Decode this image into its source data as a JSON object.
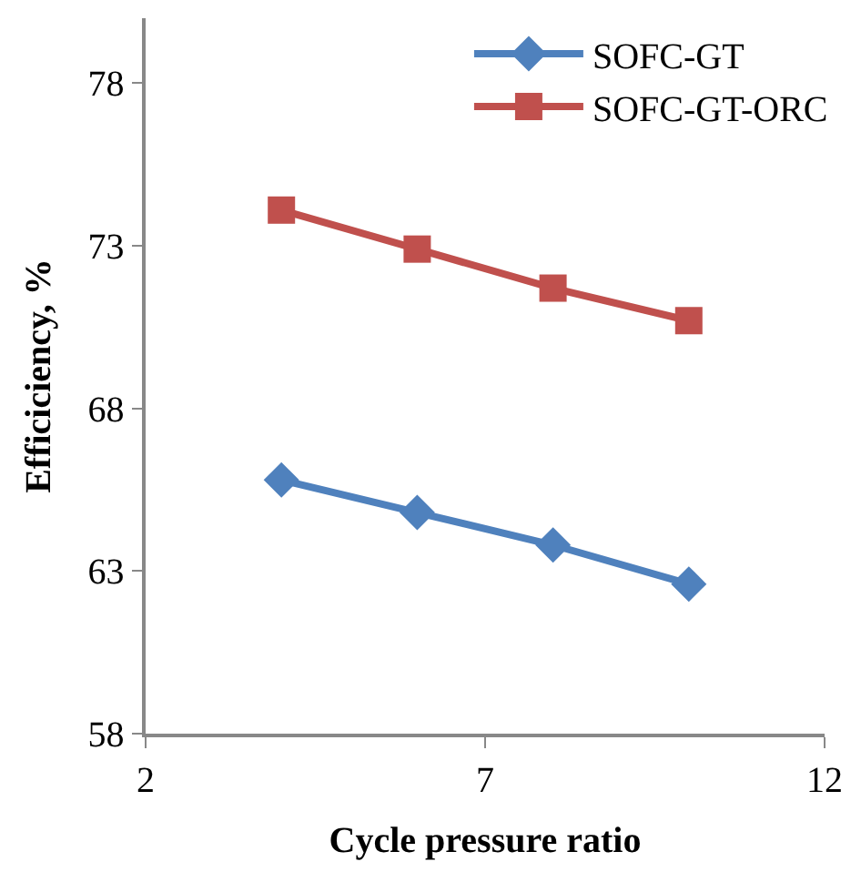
{
  "chart_data": {
    "type": "line",
    "xlabel": "Cycle pressure ratio",
    "ylabel": "Efficiciency, %",
    "x": [
      4,
      6,
      8,
      10
    ],
    "series": [
      {
        "name": "SOFC-GT",
        "color": "#4f81bd",
        "marker": "diamond",
        "values": [
          65.8,
          64.8,
          63.8,
          62.6
        ]
      },
      {
        "name": "SOFC-GT-ORC",
        "color": "#c0504d",
        "marker": "square",
        "values": [
          74.1,
          72.9,
          71.7,
          70.7
        ]
      }
    ],
    "xlim": [
      2,
      12
    ],
    "xticks": [
      2,
      7,
      12
    ],
    "ylim": [
      58,
      80
    ],
    "yticks": [
      58,
      63,
      68,
      73,
      78
    ],
    "legend": "top right",
    "line_style": "solid"
  }
}
